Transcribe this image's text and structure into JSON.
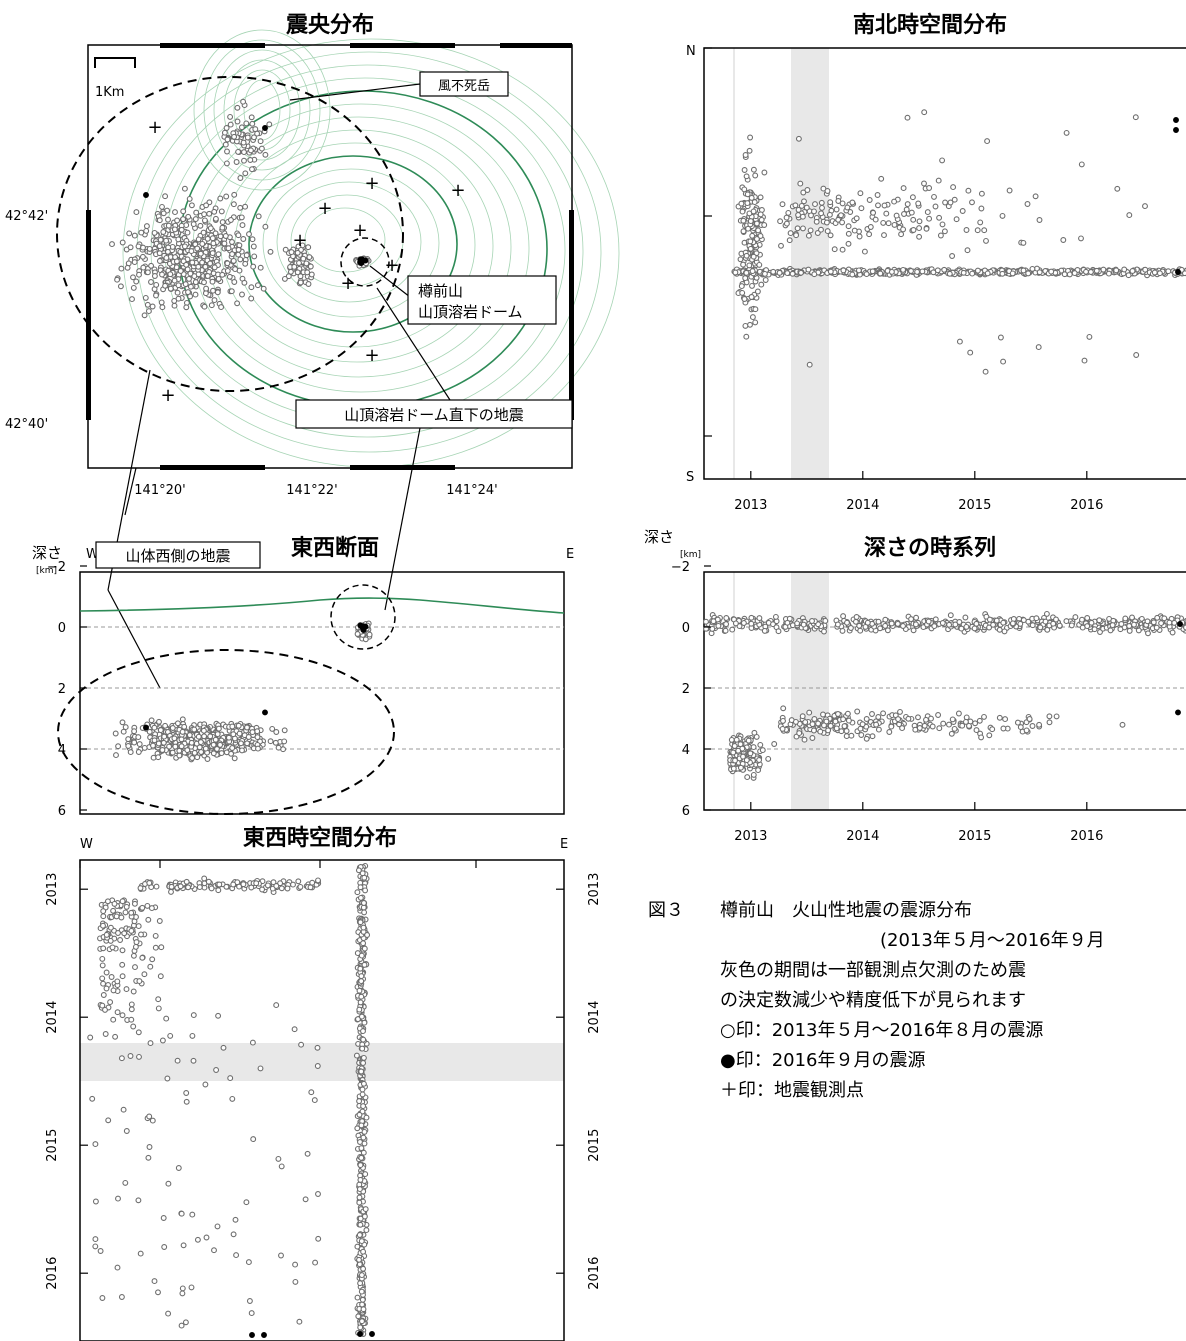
{
  "titles": {
    "epicenter": "震央分布",
    "ns_time": "南北時空間分布",
    "ew_section": "東西断面",
    "depth_time": "深さの時系列",
    "ew_time": "東西時空間分布"
  },
  "map": {
    "scale_label": "1Km",
    "lat_labels": [
      "42°42'",
      "42°40'"
    ],
    "lon_labels": [
      "141°20'",
      "141°22'",
      "141°24'"
    ],
    "callouts": {
      "fuppushi": "風不死岳",
      "dome_1": "樽前山",
      "dome_2": "山頂溶岩ドーム",
      "under_dome": "山頂溶岩ドーム直下の地震",
      "west": "山体西側の地震"
    }
  },
  "axes": {
    "depth": "深さ",
    "km": "[km]",
    "w": "W",
    "e": "E",
    "n": "N",
    "s": "S",
    "depth_ticks": [
      "−2",
      "0",
      "2",
      "4",
      "6"
    ],
    "year_ticks": [
      "2013",
      "2014",
      "2015",
      "2016"
    ]
  },
  "caption": {
    "fig_no": "図３",
    "title": "樽前山　火山性地震の震源分布",
    "period": "(2013年５月～2016年９月",
    "note_1": "灰色の期間は一部観測点欠測のため震",
    "note_2": "の決定数減少や精度低下が見られます",
    "legend_open": "○印：2013年５月～2016年８月の震源",
    "legend_filled": "●印：2016年９月の震源",
    "legend_station": "＋印：地震観測点"
  },
  "colors": {
    "marker": "#6e6e6e",
    "topo": "#2e8b57",
    "topo_light": "#a6d4b4",
    "gray_band": "#e8e8e8"
  },
  "chart_data": [
    {
      "name": "epicenter",
      "type": "scatter",
      "title": "震央分布",
      "clusters": [
        {
          "name": "山体西側の地震",
          "lon": 141.325,
          "lat": 42.695
        },
        {
          "name": "山頂溶岩ドーム直下の地震",
          "lon": 141.377,
          "lat": 42.688
        },
        {
          "name": "風不死岳",
          "lon": 141.343,
          "lat": 42.72
        }
      ]
    },
    {
      "name": "ns_time",
      "type": "scatter",
      "title": "南北時空間分布",
      "x_ticks": [
        "2013",
        "2014",
        "2015",
        "2016"
      ],
      "gray_period": [
        "2013-06",
        "2013-09"
      ]
    },
    {
      "name": "ew_section",
      "type": "scatter",
      "title": "東西断面",
      "ylabel": "深さ",
      "ylim": [
        -2,
        6
      ],
      "clusters": [
        {
          "name": "山体西側の地震",
          "depth_range": [
            2,
            6
          ]
        },
        {
          "name": "山頂溶岩ドーム直下の地震",
          "depth_range": [
            -0.5,
            0.5
          ]
        }
      ]
    },
    {
      "name": "depth_time",
      "type": "scatter",
      "title": "深さの時系列",
      "ylabel": "深さ",
      "ylim": [
        -2,
        6
      ],
      "x_ticks": [
        "2013",
        "2014",
        "2015",
        "2016"
      ],
      "gray_period": [
        "2013-06",
        "2013-09"
      ]
    },
    {
      "name": "ew_time",
      "type": "scatter",
      "title": "東西時空間分布",
      "y_ticks": [
        "2013",
        "2014",
        "2015",
        "2016"
      ],
      "gray_period": [
        "2013-06",
        "2013-09"
      ]
    }
  ]
}
